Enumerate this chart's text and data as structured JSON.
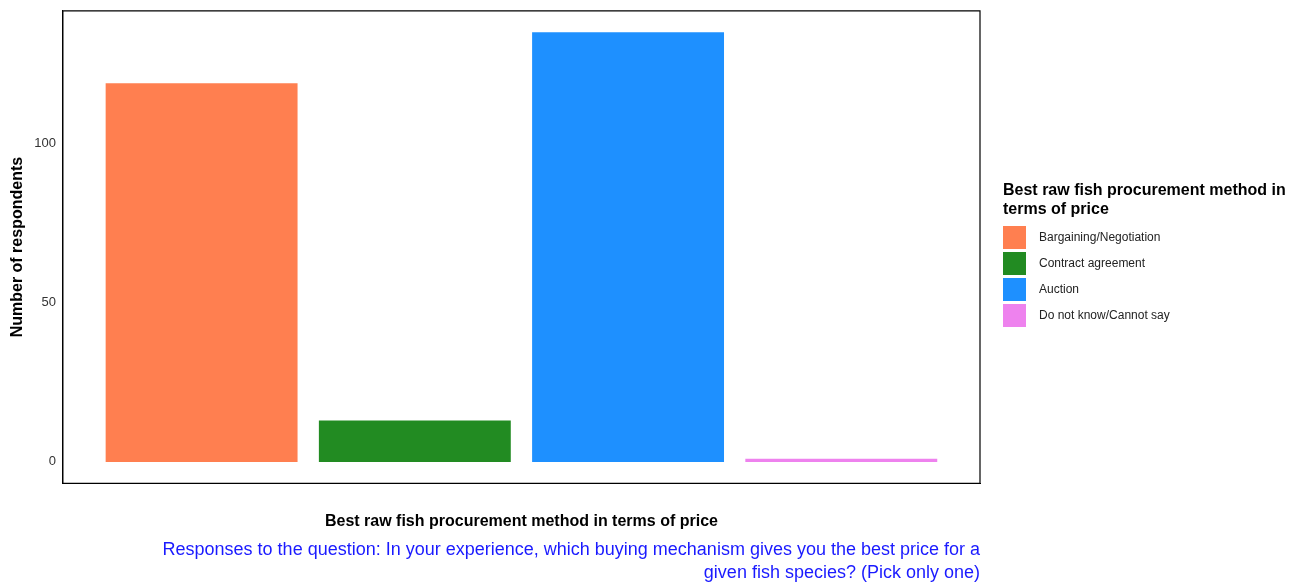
{
  "chart_data": {
    "type": "bar",
    "categories": [
      null
    ],
    "series": [
      {
        "name": "Bargaining/Negotiation",
        "color": "#ff7f50",
        "values": [
          119
        ]
      },
      {
        "name": "Contract agreement",
        "color": "#228b22",
        "values": [
          13
        ]
      },
      {
        "name": "Auction",
        "color": "#1e90ff",
        "values": [
          135
        ]
      },
      {
        "name": "Do not know/Cannot say",
        "color": "#ee82ee",
        "values": [
          1
        ]
      }
    ],
    "xlabel": "Best raw fish procurement method in terms of price",
    "ylabel": "Number of respondents",
    "legend_title": "Best raw fish procurement method in terms of price",
    "legend": "right",
    "ylim": [
      -6.75,
      141.75
    ],
    "yticks": [
      0,
      50,
      100
    ],
    "grid": false,
    "annotations": [
      "Responses to the question: In your experience, which buying mechanism gives you the best price for a given fish species? (Pick only one)"
    ]
  }
}
